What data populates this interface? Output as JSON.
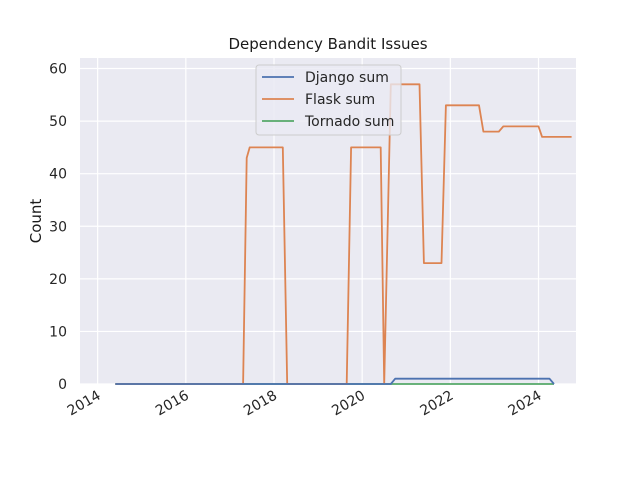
{
  "chart_data": {
    "type": "line",
    "title": "Dependency Bandit Issues",
    "xlabel": "",
    "ylabel": "Count",
    "xlim": [
      2013.6,
      2024.85
    ],
    "ylim": [
      0,
      62
    ],
    "x_ticks": [
      2014,
      2016,
      2018,
      2020,
      2022,
      2024
    ],
    "y_ticks": [
      0,
      10,
      20,
      30,
      40,
      50,
      60
    ],
    "grid": true,
    "legend_position": "upper center",
    "series": [
      {
        "name": "Django sum",
        "color": "#4c72b0",
        "points": [
          [
            2014.4,
            0
          ],
          [
            2020.65,
            0
          ],
          [
            2020.75,
            1
          ],
          [
            2024.25,
            1
          ],
          [
            2024.35,
            0
          ]
        ]
      },
      {
        "name": "Flask sum",
        "color": "#dd8452",
        "points": [
          [
            2014.4,
            0
          ],
          [
            2017.3,
            0
          ],
          [
            2017.38,
            43
          ],
          [
            2017.45,
            45
          ],
          [
            2018.2,
            45
          ],
          [
            2018.3,
            0
          ],
          [
            2019.65,
            0
          ],
          [
            2019.75,
            45
          ],
          [
            2020.42,
            45
          ],
          [
            2020.5,
            0
          ],
          [
            2020.65,
            57
          ],
          [
            2021.3,
            57
          ],
          [
            2021.4,
            23
          ],
          [
            2021.8,
            23
          ],
          [
            2021.9,
            53
          ],
          [
            2022.65,
            53
          ],
          [
            2022.75,
            48
          ],
          [
            2023.1,
            48
          ],
          [
            2023.2,
            49
          ],
          [
            2024.0,
            49
          ],
          [
            2024.08,
            47
          ],
          [
            2024.75,
            47
          ]
        ]
      },
      {
        "name": "Tornado sum",
        "color": "#55a868",
        "points": [
          [
            2014.4,
            0
          ],
          [
            2024.35,
            0
          ]
        ]
      }
    ]
  }
}
